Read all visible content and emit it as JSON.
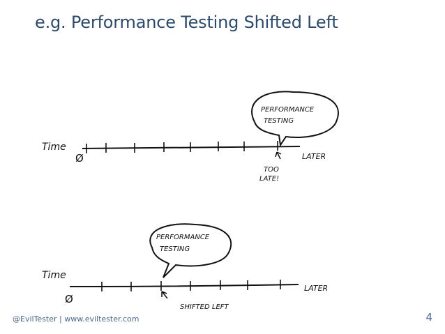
{
  "slide": {
    "title": "e.g. Performance Testing Shifted Left",
    "footer": "@EvilTester | www.eviltester.com",
    "page_number": "4"
  },
  "diagram_top": {
    "axis_label": "Time",
    "start_label": "Ø",
    "end_label": "LATER",
    "bubble_line1": "PERFORMANCE",
    "bubble_line2": "TESTING",
    "note_line1": "TOO",
    "note_line2": "LATE!"
  },
  "diagram_bottom": {
    "axis_label": "Time",
    "start_label": "Ø",
    "end_label": "LATER",
    "bubble_line1": "PERFORMANCE",
    "bubble_line2": "TESTING",
    "note": "SHIFTED LEFT"
  }
}
